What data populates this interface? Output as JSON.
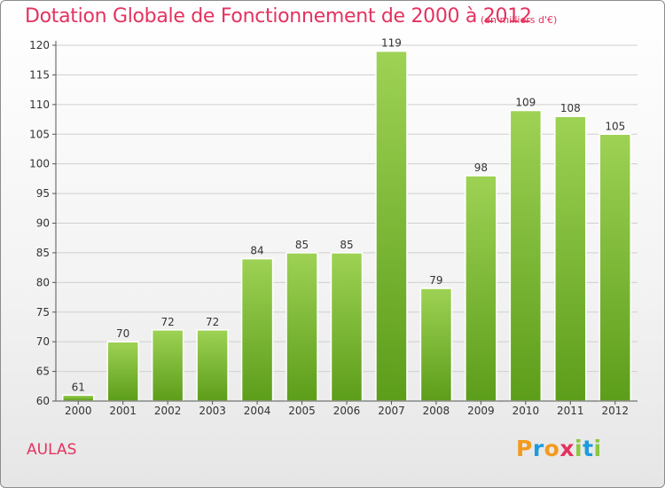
{
  "title": "Dotation Globale de Fonctionnement de 2000 à 2012",
  "subtitle": "(en milliers d'€)",
  "commune": "AULAS",
  "logo": {
    "letters": [
      "P",
      "r",
      "o",
      "x",
      "i",
      "t",
      "i"
    ],
    "colors": [
      "#f39a1d",
      "#1c9be0",
      "#f39a1d",
      "#e4325f",
      "#8cc63f",
      "#1c9be0",
      "#8cc63f"
    ]
  },
  "colors": {
    "accent": "#e4325f",
    "bar_top": "#9ed254",
    "bar_bottom": "#5c9d1a"
  },
  "chart_data": {
    "type": "bar",
    "categories": [
      "2000",
      "2001",
      "2002",
      "2003",
      "2004",
      "2005",
      "2006",
      "2007",
      "2008",
      "2009",
      "2010",
      "2011",
      "2012"
    ],
    "values": [
      61,
      70,
      72,
      72,
      84,
      85,
      85,
      119,
      79,
      98,
      109,
      108,
      105
    ],
    "ylim": [
      60,
      120
    ],
    "yticks": [
      60,
      65,
      70,
      75,
      80,
      85,
      90,
      95,
      100,
      105,
      110,
      115,
      120
    ],
    "grid": true
  }
}
